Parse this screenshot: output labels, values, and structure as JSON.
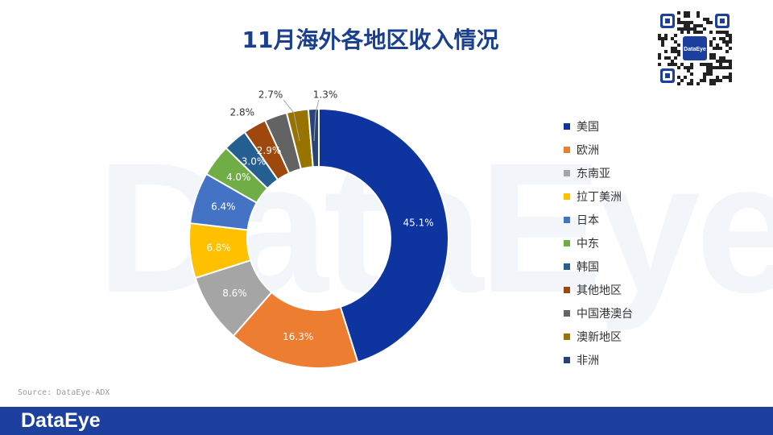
{
  "page": {
    "title": "11月海外各地区收入情况",
    "source": "Source: DataEye-ADX",
    "watermark": "DataEye",
    "footer_logo": "DataEye",
    "qr_logo": "DataEye",
    "footer_color": "#1d3f9e"
  },
  "chart_data": {
    "type": "pie",
    "style": "donut",
    "title": "11月海外各地区收入情况",
    "legend_position": "right",
    "slices": [
      {
        "label": "美国",
        "value": 45.1,
        "display": "45.1%",
        "color": "#0e34a0"
      },
      {
        "label": "欧洲",
        "value": 16.3,
        "display": "16.3%",
        "color": "#ed7d31"
      },
      {
        "label": "东南亚",
        "value": 8.6,
        "display": "8.6%",
        "color": "#a5a5a5"
      },
      {
        "label": "拉丁美洲",
        "value": 6.8,
        "display": "6.8%",
        "color": "#ffc000"
      },
      {
        "label": "日本",
        "value": 6.4,
        "display": "6.4%",
        "color": "#4472c4"
      },
      {
        "label": "中东",
        "value": 4.0,
        "display": "4.0%",
        "color": "#70ad47"
      },
      {
        "label": "韩国",
        "value": 3.0,
        "display": "3.0%",
        "color": "#255e91"
      },
      {
        "label": "其他地区",
        "value": 2.9,
        "display": "2.9%",
        "color": "#9e480e"
      },
      {
        "label": "中国港澳台",
        "value": 2.8,
        "display": "2.8%",
        "color": "#636363"
      },
      {
        "label": "澳新地区",
        "value": 2.7,
        "display": "2.7%",
        "color": "#997300"
      },
      {
        "label": "非洲",
        "value": 1.3,
        "display": "1.3%",
        "color": "#264478"
      }
    ]
  }
}
